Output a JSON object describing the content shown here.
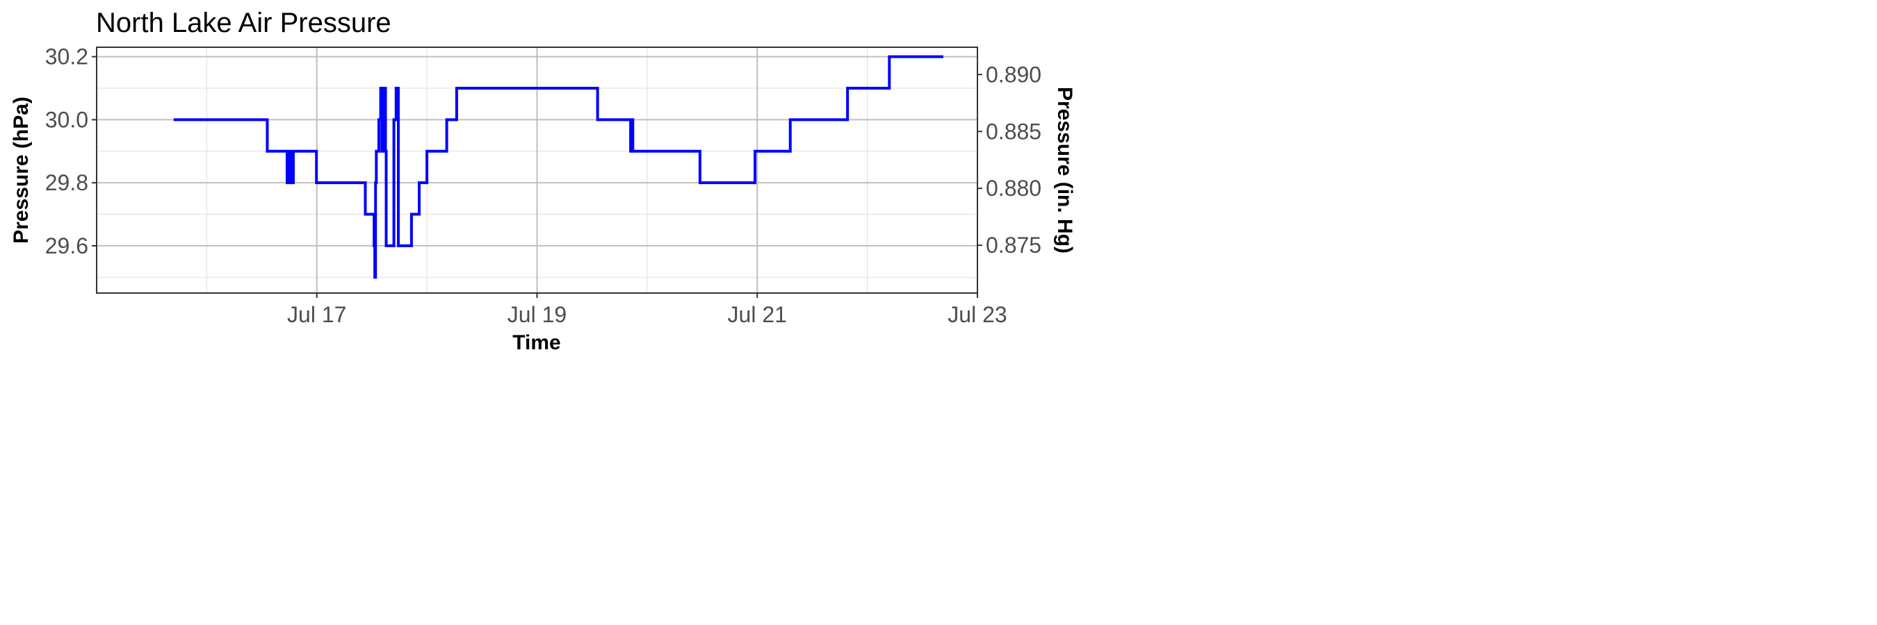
{
  "chart_data": {
    "type": "line",
    "title": "North Lake Air Pressure",
    "xlabel": "Time",
    "ylabel": "Pressure (hPa)",
    "y2label": "Pressure (in. Hg)",
    "x_ticks": [
      "Jul 17",
      "Jul 19",
      "Jul 21",
      "Jul 23"
    ],
    "x_tick_dates": [
      "Jul 17",
      "Jul 19",
      "Jul 21",
      "Jul 23"
    ],
    "x_range": [
      "Jul 15 00:00",
      "Jul 23 00:00"
    ],
    "y_ticks": [
      "29.6",
      "29.8",
      "30.0",
      "30.2"
    ],
    "y_tick_values": [
      29.6,
      29.8,
      30.0,
      30.2
    ],
    "ylim": [
      29.45,
      30.23
    ],
    "y2_ticks": [
      "0.875",
      "0.880",
      "0.885",
      "0.890"
    ],
    "y2_tick_values": [
      0.875,
      0.88,
      0.885,
      0.89
    ],
    "y2lim": [
      0.8708,
      0.8924
    ],
    "grid": true,
    "line_color": "#0000ff",
    "series": [
      {
        "step": "hv",
        "points": [
          [
            "Jul 15 16:48",
            30.0
          ],
          [
            "Jul 16 13:12",
            29.9
          ],
          [
            "Jul 16 17:31",
            29.8
          ],
          [
            "Jul 16 17:46",
            29.9
          ],
          [
            "Jul 16 17:55",
            29.8
          ],
          [
            "Jul 16 18:14",
            29.9
          ],
          [
            "Jul 16 18:29",
            29.8
          ],
          [
            "Jul 16 18:53",
            29.9
          ],
          [
            "Jul 16 23:55",
            29.8
          ],
          [
            "Jul 17 10:34",
            29.7
          ],
          [
            "Jul 17 12:29",
            29.6
          ],
          [
            "Jul 17 12:38",
            29.5
          ],
          [
            "Jul 17 12:48",
            29.8
          ],
          [
            "Jul 17 12:58",
            29.9
          ],
          [
            "Jul 17 13:31",
            30.0
          ],
          [
            "Jul 17 13:55",
            30.1
          ],
          [
            "Jul 17 14:10",
            29.9
          ],
          [
            "Jul 17 14:38",
            30.1
          ],
          [
            "Jul 17 14:58",
            29.9
          ],
          [
            "Jul 17 15:07",
            29.6
          ],
          [
            "Jul 17 16:48",
            30.0
          ],
          [
            "Jul 17 17:17",
            30.1
          ],
          [
            "Jul 17 17:46",
            29.6
          ],
          [
            "Jul 17 20:38",
            29.7
          ],
          [
            "Jul 17 22:19",
            29.8
          ],
          [
            "Jul 18 00:00",
            29.9
          ],
          [
            "Jul 18 04:19",
            30.0
          ],
          [
            "Jul 18 06:29",
            30.1
          ],
          [
            "Jul 19 13:12",
            30.0
          ],
          [
            "Jul 19 20:24",
            29.9
          ],
          [
            "Jul 19 20:38",
            30.0
          ],
          [
            "Jul 19 20:53",
            29.9
          ],
          [
            "Jul 20 11:31",
            29.8
          ],
          [
            "Jul 20 23:31",
            29.9
          ],
          [
            "Jul 21 07:12",
            30.0
          ],
          [
            "Jul 21 19:41",
            30.1
          ],
          [
            "Jul 22 04:48",
            30.2
          ],
          [
            "Jul 22 16:34",
            30.2
          ]
        ]
      }
    ]
  }
}
